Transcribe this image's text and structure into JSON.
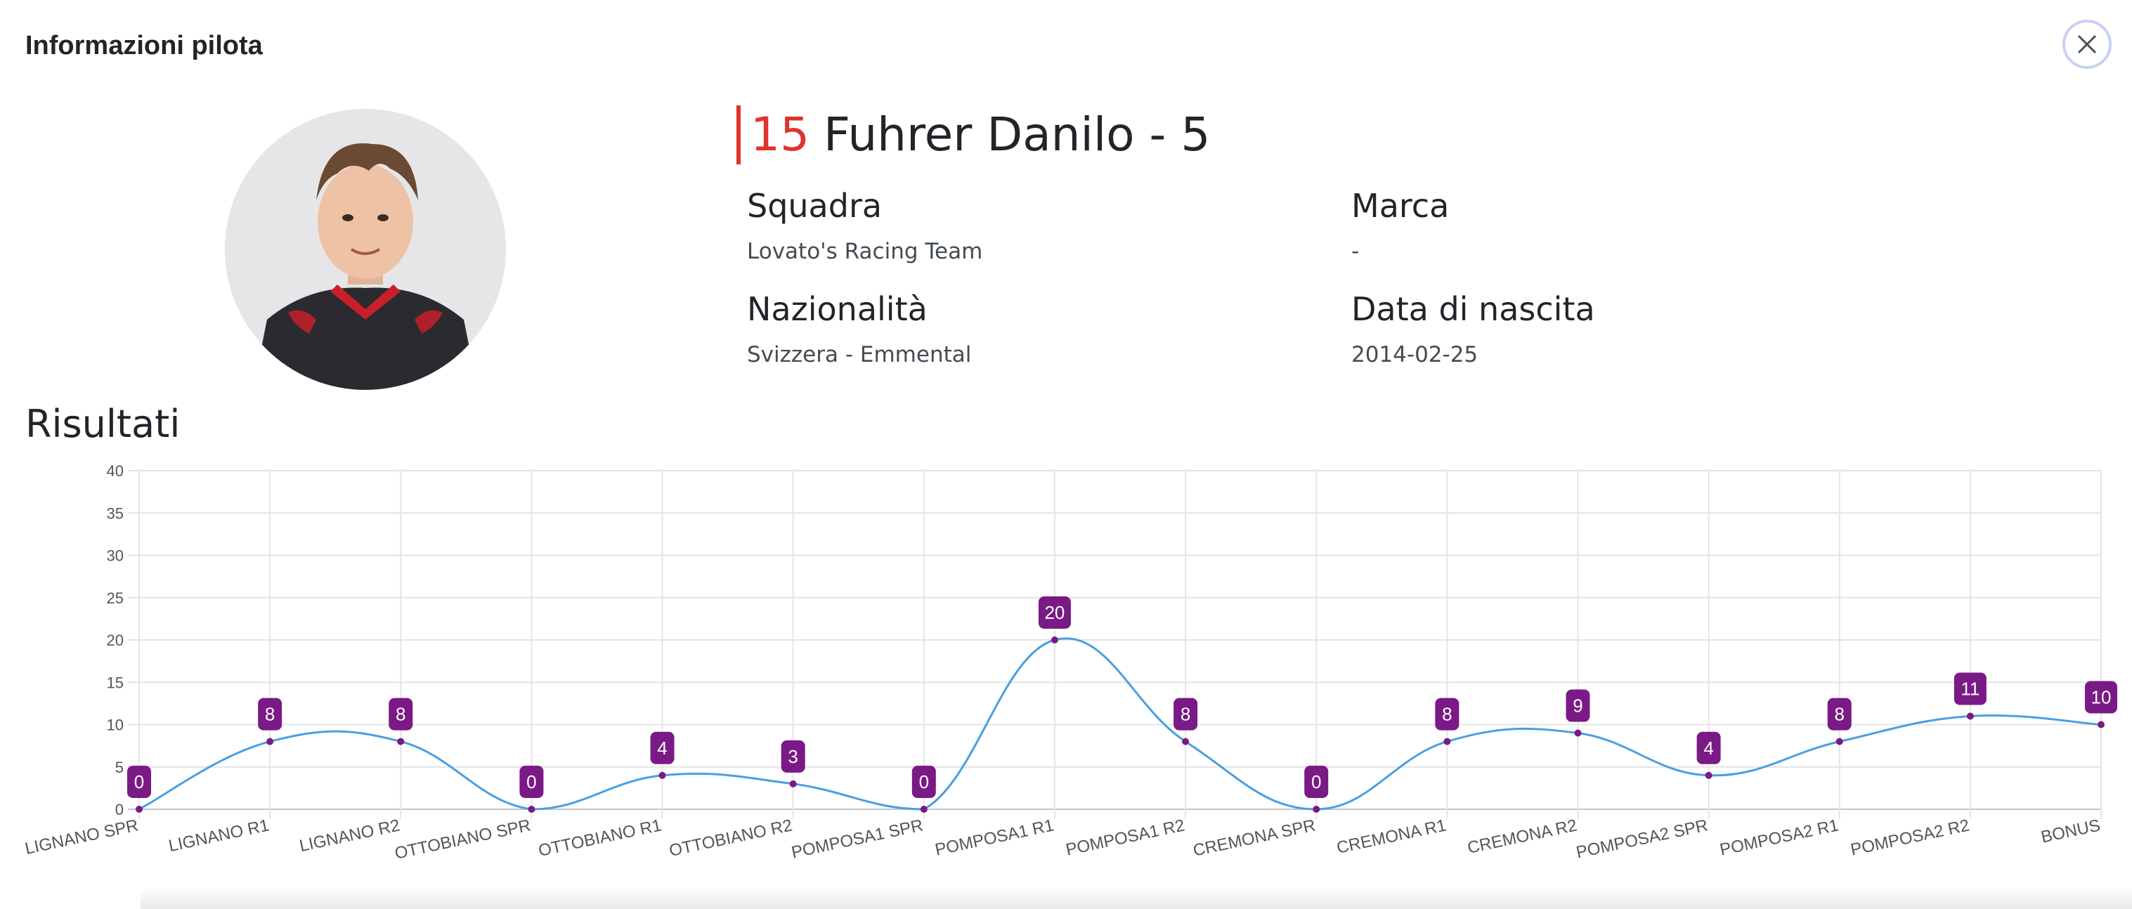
{
  "modal": {
    "title": "Informazioni pilota"
  },
  "pilot": {
    "number": "15",
    "name": "Fuhrer Danilo - 5",
    "squadra_label": "Squadra",
    "squadra_value": "Lovato's Racing Team",
    "marca_label": "Marca",
    "marca_value": "-",
    "nazionalita_label": "Nazionalità",
    "nazionalita_value": "Svizzera - Emmental",
    "nascita_label": "Data di nascita",
    "nascita_value": "2014-02-25"
  },
  "results": {
    "title": "Risultati"
  },
  "colors": {
    "accent": "#e0332c",
    "line": "#4a9fe0",
    "label_bg": "#7a1a86"
  },
  "icons": {
    "close": "close-icon"
  },
  "chart_data": {
    "type": "line",
    "categories": [
      "LIGNANO SPR",
      "LIGNANO R1",
      "LIGNANO R2",
      "OTTOBIANO SPR",
      "OTTOBIANO R1",
      "OTTOBIANO R2",
      "POMPOSA1 SPR",
      "POMPOSA1 R1",
      "POMPOSA1 R2",
      "CREMONA SPR",
      "CREMONA R1",
      "CREMONA R2",
      "POMPOSA2 SPR",
      "POMPOSA2 R1",
      "POMPOSA2 R2",
      "BONUS"
    ],
    "values": [
      0,
      8,
      8,
      0,
      4,
      3,
      0,
      20,
      8,
      0,
      8,
      9,
      4,
      8,
      11,
      10
    ],
    "ylim": [
      0,
      40
    ],
    "yticks": [
      0,
      5,
      10,
      15,
      20,
      25,
      30,
      35,
      40
    ],
    "grid": true
  }
}
